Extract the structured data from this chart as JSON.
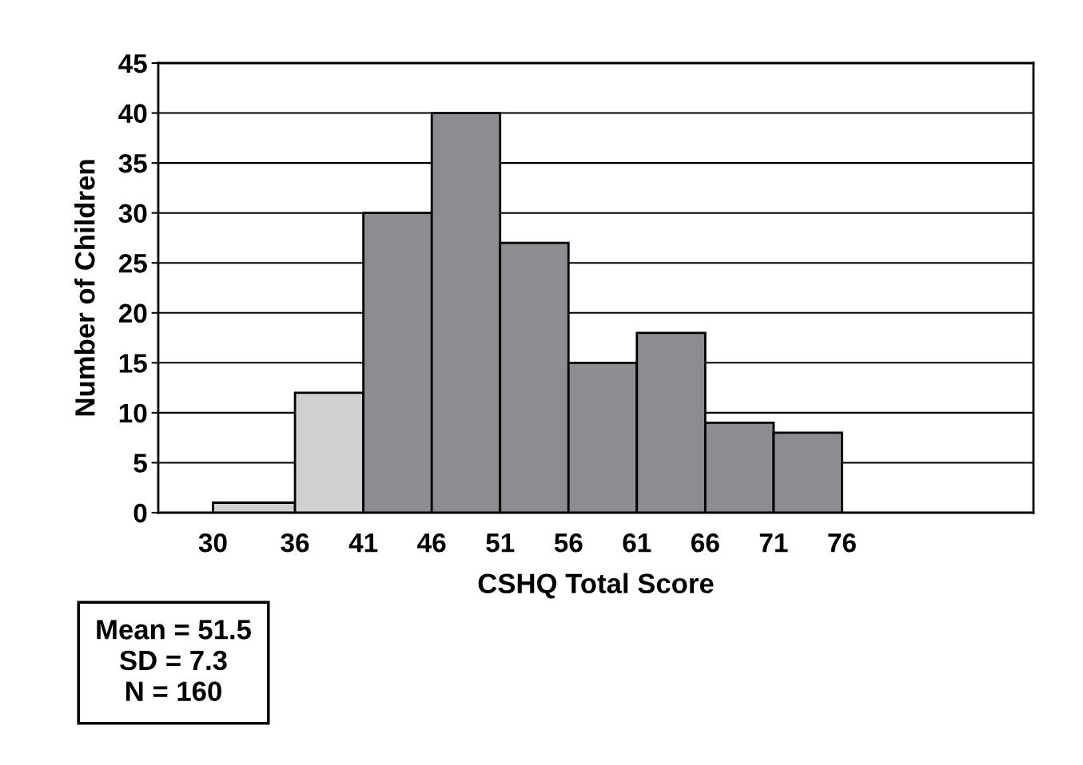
{
  "chart_data": {
    "type": "histogram",
    "xlabel": "CSHQ Total Score",
    "ylabel": "Number of Children",
    "bins": [
      30,
      36,
      41,
      46,
      51,
      56,
      61,
      66,
      71,
      76
    ],
    "values": [
      1,
      12,
      30,
      40,
      27,
      15,
      18,
      9,
      8
    ],
    "colors": [
      "#d0d1d3",
      "#d0d1d3",
      "#8c8d90",
      "#8c8d90",
      "#8c8d90",
      "#8c8d90",
      "#8c8d90",
      "#8c8d90",
      "#8c8d90"
    ],
    "xlim": [
      26,
      90
    ],
    "xticks": [
      30,
      36,
      41,
      46,
      51,
      56,
      61,
      66,
      71,
      76
    ],
    "ylim": [
      0,
      45
    ],
    "yticks": [
      0,
      5,
      10,
      15,
      20,
      25,
      30,
      35,
      40,
      45
    ],
    "grid": "y",
    "legend": false,
    "annotations": [
      "Mean = 51.5\nSD = 7.3\nN = 160"
    ]
  }
}
